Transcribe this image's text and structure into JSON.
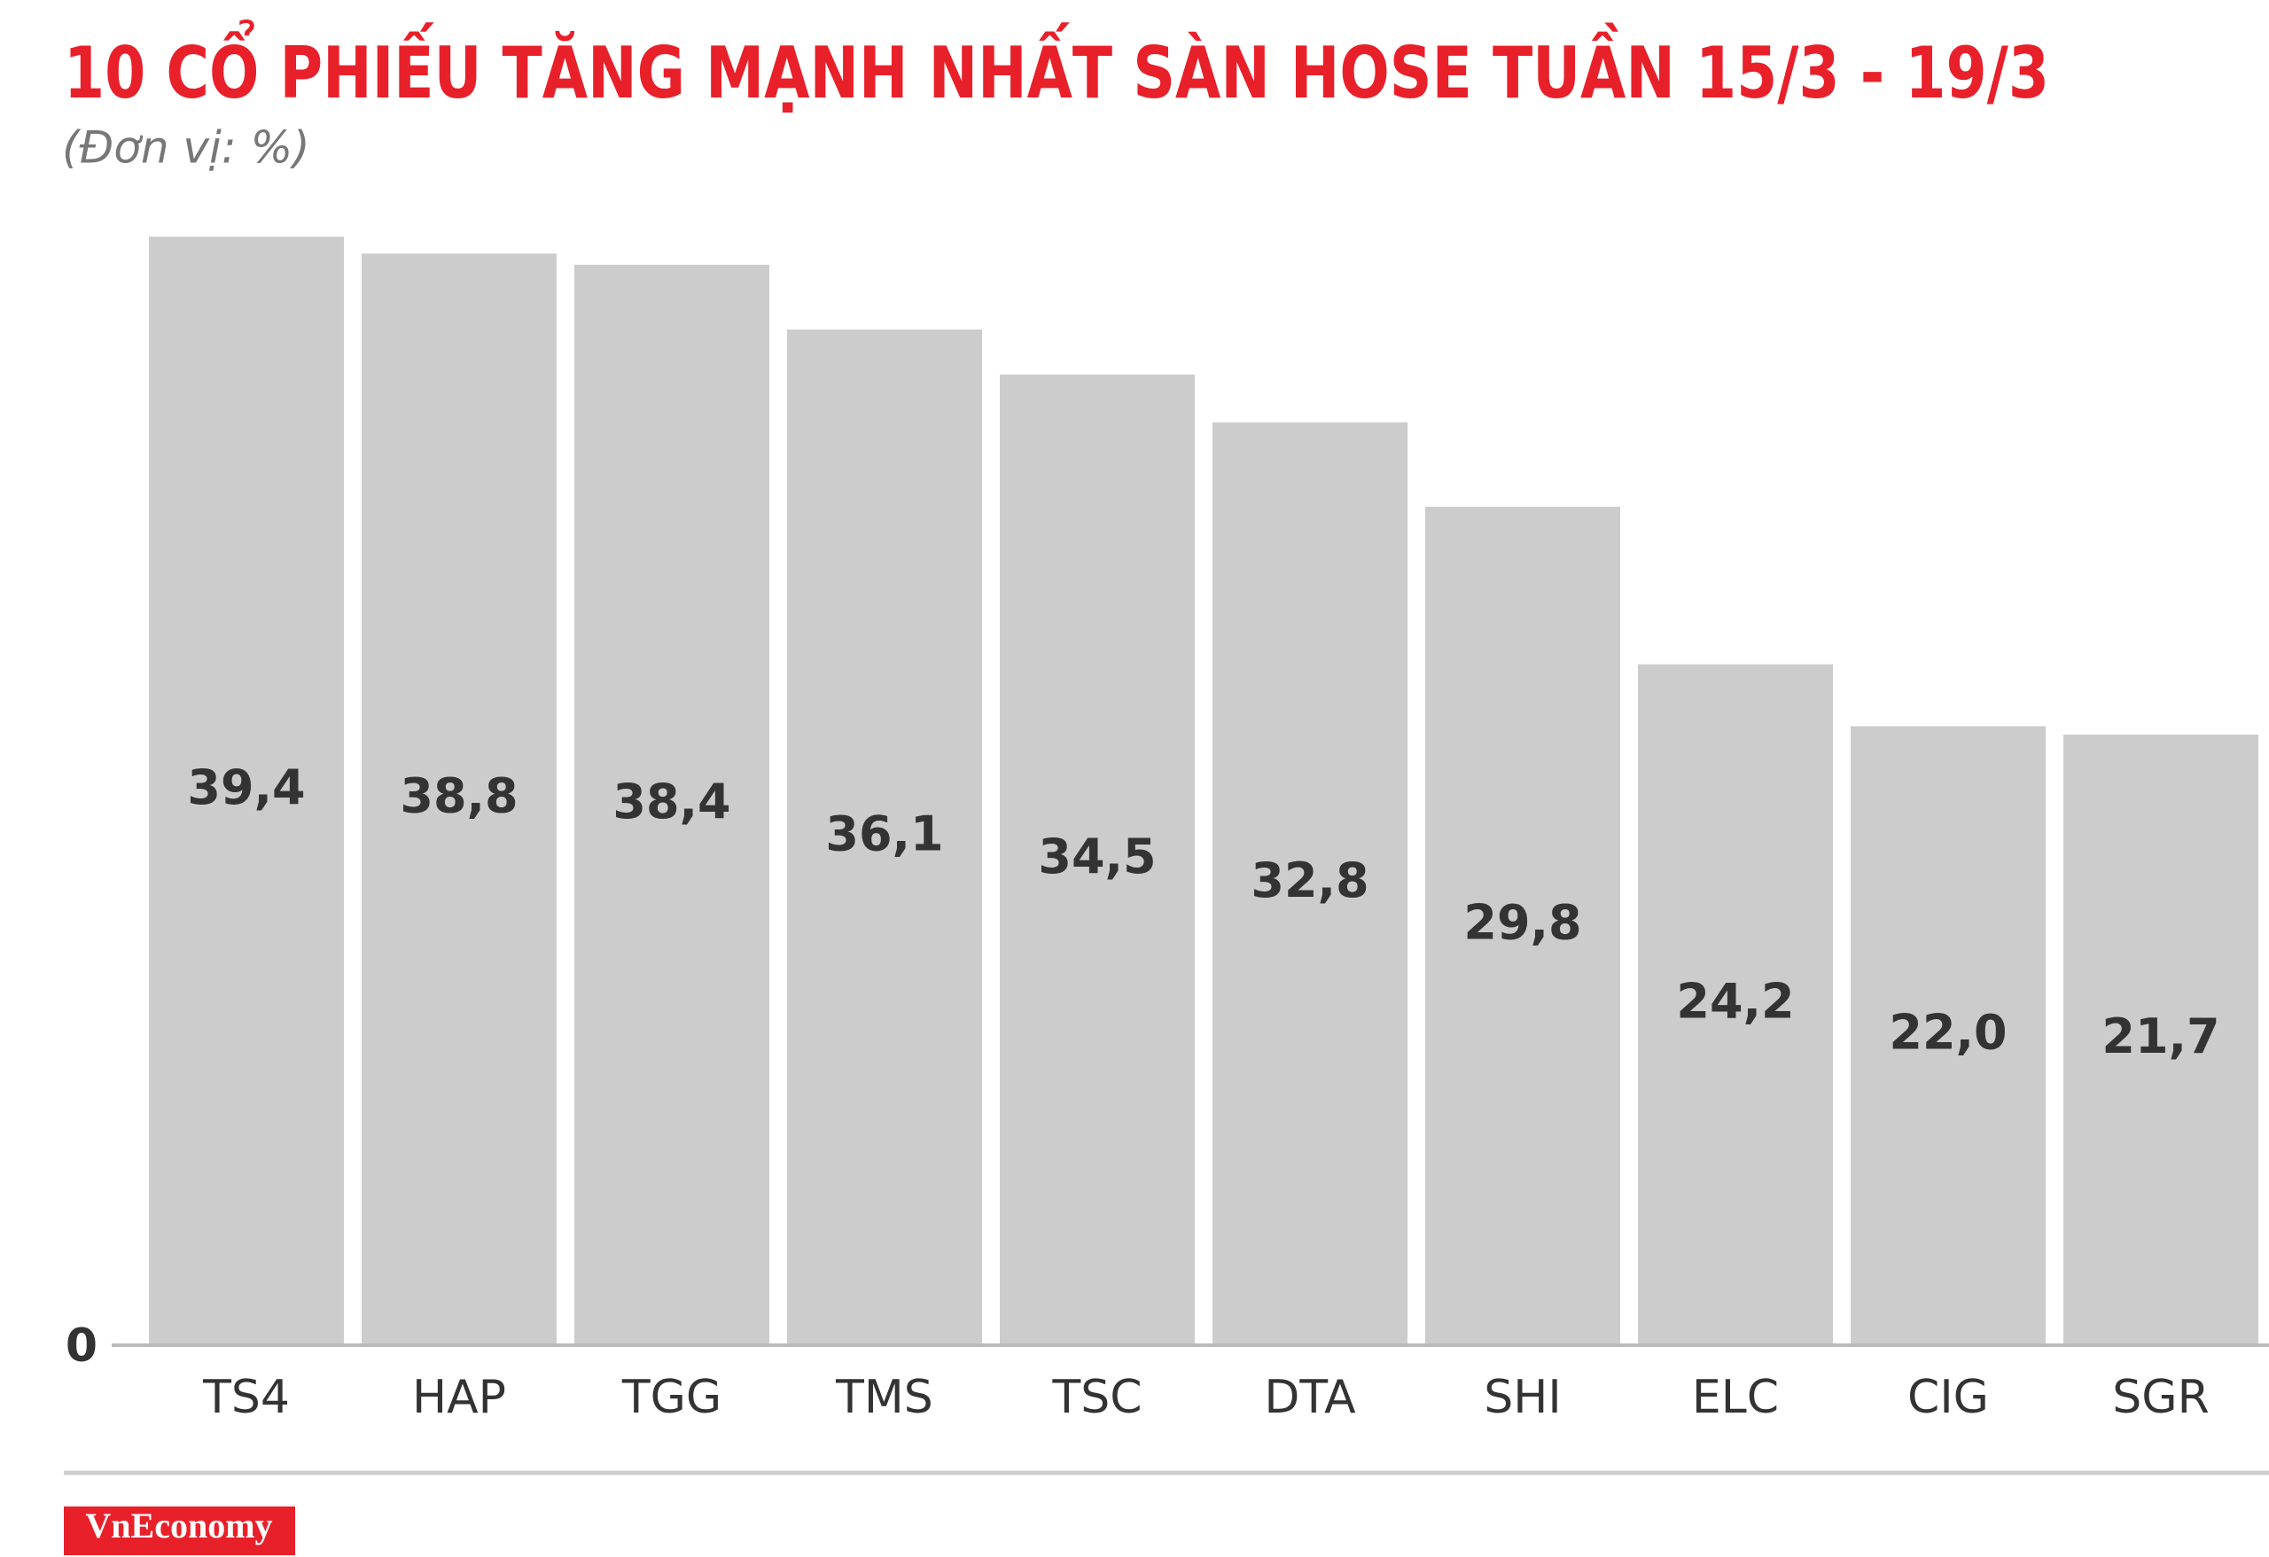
{
  "chart_data": {
    "type": "bar",
    "title": "10 CỔ PHIẾU TĂNG MẠNH NHẤT SÀN HOSE TUẦN 15/3 - 19/3",
    "subtitle": "(Đơn vị: %)",
    "categories": [
      "TS4",
      "HAP",
      "TGG",
      "TMS",
      "TSC",
      "DTA",
      "SHI",
      "ELC",
      "CIG",
      "SGR"
    ],
    "values": [
      39.4,
      38.8,
      38.4,
      36.1,
      34.5,
      32.8,
      29.8,
      24.2,
      22.0,
      21.7
    ],
    "value_labels": [
      "39,4",
      "38,8",
      "38,4",
      "36,1",
      "34,5",
      "32,8",
      "29,8",
      "24,2",
      "22,0",
      "21,7"
    ],
    "color": "#cccccc",
    "ylim": [
      0,
      40
    ],
    "yticks": [
      0
    ],
    "grid": false,
    "source": "VnEconomy"
  }
}
